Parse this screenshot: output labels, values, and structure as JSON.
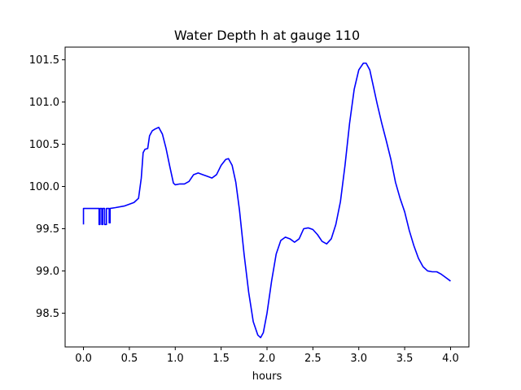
{
  "chart_data": {
    "type": "line",
    "title": "Water Depth h at gauge 110",
    "xlabel": "hours",
    "ylabel": "",
    "xlim": [
      -0.2,
      4.2
    ],
    "ylim": [
      98.1,
      101.65
    ],
    "xticks": [
      0.0,
      0.5,
      1.0,
      1.5,
      2.0,
      2.5,
      3.0,
      3.5,
      4.0
    ],
    "xtick_labels": [
      "0.0",
      "0.5",
      "1.0",
      "1.5",
      "2.0",
      "2.5",
      "3.0",
      "3.5",
      "4.0"
    ],
    "yticks": [
      98.5,
      99.0,
      99.5,
      100.0,
      100.5,
      101.0,
      101.5
    ],
    "ytick_labels": [
      "98.5",
      "99.0",
      "99.5",
      "100.0",
      "100.5",
      "101.0",
      "101.5"
    ],
    "grid": false,
    "series": [
      {
        "color": "#0000ff",
        "x": [
          0.0,
          0.0,
          0.17,
          0.17,
          0.18,
          0.18,
          0.2,
          0.2,
          0.21,
          0.21,
          0.23,
          0.23,
          0.25,
          0.25,
          0.28,
          0.28,
          0.29,
          0.29,
          0.35,
          0.45,
          0.55,
          0.6,
          0.63,
          0.65,
          0.67,
          0.7,
          0.72,
          0.75,
          0.78,
          0.82,
          0.86,
          0.9,
          0.94,
          0.98,
          1.0,
          1.05,
          1.1,
          1.15,
          1.2,
          1.25,
          1.3,
          1.35,
          1.4,
          1.45,
          1.5,
          1.55,
          1.58,
          1.62,
          1.66,
          1.7,
          1.75,
          1.8,
          1.85,
          1.9,
          1.93,
          1.96,
          2.0,
          2.05,
          2.1,
          2.15,
          2.2,
          2.25,
          2.3,
          2.35,
          2.4,
          2.45,
          2.5,
          2.55,
          2.6,
          2.65,
          2.7,
          2.75,
          2.8,
          2.85,
          2.9,
          2.95,
          3.0,
          3.05,
          3.08,
          3.12,
          3.16,
          3.2,
          3.25,
          3.3,
          3.35,
          3.4,
          3.45,
          3.5,
          3.55,
          3.6,
          3.65,
          3.7,
          3.75,
          3.8,
          3.85,
          3.9,
          3.95,
          4.0
        ],
        "y": [
          99.55,
          99.74,
          99.74,
          99.55,
          99.55,
          99.74,
          99.74,
          99.55,
          99.55,
          99.74,
          99.74,
          99.55,
          99.55,
          99.74,
          99.74,
          99.57,
          99.57,
          99.74,
          99.75,
          99.77,
          99.81,
          99.86,
          100.1,
          100.4,
          100.44,
          100.45,
          100.6,
          100.66,
          100.68,
          100.7,
          100.62,
          100.45,
          100.24,
          100.04,
          100.02,
          100.03,
          100.03,
          100.06,
          100.14,
          100.16,
          100.14,
          100.12,
          100.1,
          100.14,
          100.25,
          100.32,
          100.33,
          100.25,
          100.05,
          99.72,
          99.2,
          98.75,
          98.4,
          98.24,
          98.21,
          98.27,
          98.5,
          98.88,
          99.2,
          99.36,
          99.4,
          99.38,
          99.34,
          99.38,
          99.5,
          99.51,
          99.49,
          99.43,
          99.35,
          99.32,
          99.38,
          99.55,
          99.82,
          100.25,
          100.75,
          101.15,
          101.38,
          101.46,
          101.46,
          101.38,
          101.18,
          100.98,
          100.75,
          100.54,
          100.32,
          100.05,
          99.86,
          99.7,
          99.48,
          99.3,
          99.15,
          99.05,
          99.0,
          98.99,
          98.99,
          98.96,
          98.92,
          98.88
        ]
      }
    ]
  }
}
